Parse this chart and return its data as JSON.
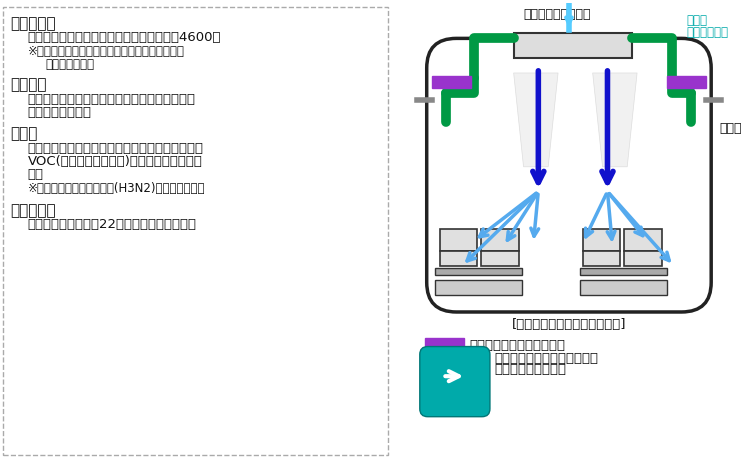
{
  "bg_color": "#ffffff",
  "border_color": "#aaaaaa",
  "left_panel": {
    "bullet1_head": "・対象列車",
    "bullet1_body": "サンダーバード、はるかなど、特急車両結4600两",
    "bullet1_note1": "※停車駅間の走行時間が長く、お客様自身で窓が",
    "bullet1_note2": "　開けられない",
    "bullet2_head": "・しくみ",
    "bullet2_body1": "客室天井部にある空調装置の吸い込み口（フィ",
    "bullet2_body2": "ルタ部分）に設置",
    "bullet3_head": "・効果",
    "bullet3_body1": "光触媒と紫外線の組み合わせにより脱臭・除菌・",
    "bullet3_body2": "VOC(挥発性有機化合物)除去に優れた効果を",
    "bullet3_body3": "発揮",
    "bullet3_note": "※インフルエンザウイルス(H3N2)への効果を確認",
    "bullet4_head": "・実施時期",
    "bullet4_body": "本年９月以降順次、22年度末までに完了予定"
  },
  "right_panel": {
    "top_label": "外の空気を取り込む",
    "green_label1": "空気を",
    "green_label2": "きれいにする",
    "ac_label": "空調装置",
    "vent_label": "换気口",
    "diagram_caption": "[特急車両の空気清浄のしくみ]",
    "legend_label": "：空気清浄機【今回搭載】",
    "pict_label1": "空気清浄機を搭載した車両は",
    "pict_label2": "ピクトグラムで標記"
  },
  "colors": {
    "purple": "#9b30ff",
    "green": "#00aa55",
    "blue_dark": "#0000dd",
    "blue_light": "#55aaff",
    "teal": "#00aaaa",
    "gray_light": "#cccccc",
    "gray_mid": "#888888",
    "black": "#111111",
    "border_dash": "#aaaaaa",
    "bg_white": "#ffffff",
    "train_body": "#222222",
    "ac_fill": "#dddddd",
    "seat_fill": "#e8e8e8",
    "pict_bg": "#00aaaa"
  }
}
